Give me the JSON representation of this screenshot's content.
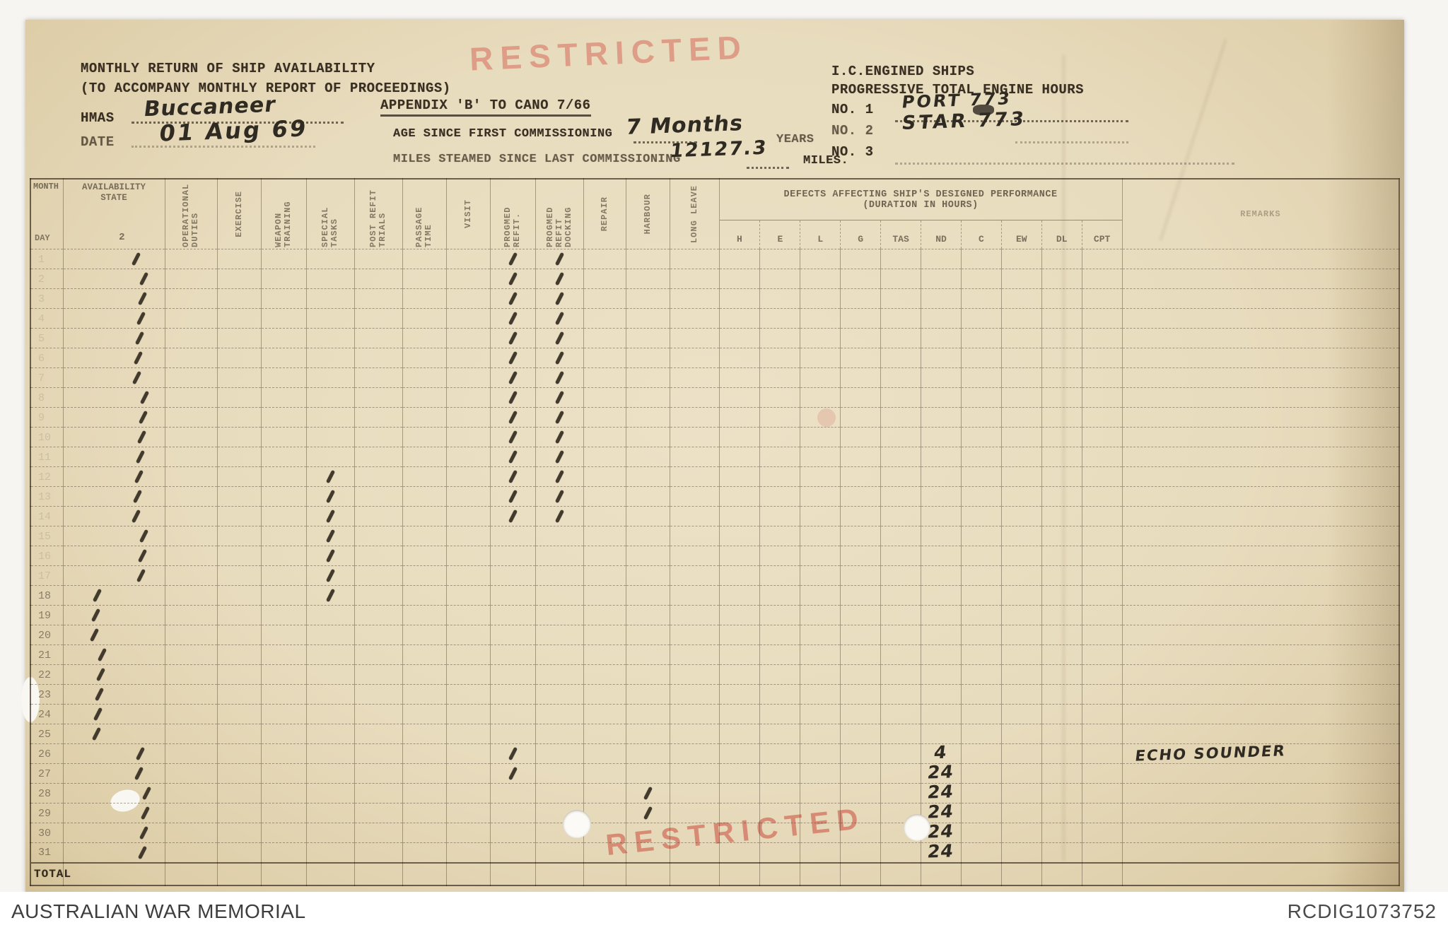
{
  "header": {
    "title_line1": "MONTHLY RETURN OF SHIP AVAILABILITY",
    "title_line2": "(TO ACCOMPANY MONTHLY REPORT OF PROCEEDINGS)",
    "hmas_label": "HMAS",
    "ship_name": "Buccaneer",
    "date_label": "DATE",
    "date_value": "01 Aug 69",
    "appendix": "APPENDIX 'B' TO CANO 7/66",
    "age_label": "AGE SINCE FIRST COMMISSIONING",
    "age_value": "7 Months",
    "age_unit": "YEARS",
    "miles_label": "MILES STEAMED SINCE LAST COMMISSIONING",
    "miles_value": "12127.3",
    "miles_unit": "MILES.",
    "engine_line1": "I.C.ENGINED SHIPS",
    "engine_line2": "PROGRESSIVE TOTAL ENGINE HOURS",
    "engine_no1_label": "NO. 1",
    "engine_no1_value": "PORT 773",
    "engine_no2_label": "NO. 2",
    "engine_no2_value": "STAR 773",
    "engine_no3_label": "NO. 3",
    "engine_no3_value": "",
    "stamp": "RESTRICTED"
  },
  "table": {
    "month_label": "MONTH",
    "day_label": "DAY",
    "availability_label": "AVAILABILITY STATE",
    "availability_state": "2",
    "rotated_columns": [
      {
        "id": "op",
        "label": "OPERATIONAL DUTIES"
      },
      {
        "id": "ex",
        "label": "EXERCISE"
      },
      {
        "id": "wt",
        "label": "WEAPON TRAINING"
      },
      {
        "id": "st",
        "label": "SPECIAL TASKS"
      },
      {
        "id": "prt",
        "label": "POST REFIT TRIALS"
      },
      {
        "id": "pt",
        "label": "PASSAGE TIME"
      },
      {
        "id": "v",
        "label": "VISIT"
      },
      {
        "id": "pr",
        "label": "PROGMED REFIT."
      },
      {
        "id": "prd",
        "label": "PROGMED REFIT DOCKING"
      },
      {
        "id": "rep",
        "label": "REPAIR"
      },
      {
        "id": "hb",
        "label": "HARBOUR"
      },
      {
        "id": "ll",
        "label": "LONG LEAVE"
      }
    ],
    "defects_header": "DEFECTS AFFECTING SHIP'S DESIGNED PERFORMANCE",
    "defects_subheader": "(DURATION IN HOURS)",
    "defect_columns": [
      "H",
      "E",
      "L",
      "G",
      "TAS",
      "ND",
      "C",
      "EW",
      "DL",
      "CPT"
    ],
    "remarks_label": "REMARKS",
    "total_label": "TOTAL",
    "rows": [
      {
        "day": "1",
        "ticks": [
          "av",
          "pr",
          "prd"
        ],
        "nd": "",
        "remark": ""
      },
      {
        "day": "2",
        "ticks": [
          "av",
          "pr",
          "prd"
        ],
        "nd": "",
        "remark": ""
      },
      {
        "day": "3",
        "ticks": [
          "av",
          "pr",
          "prd"
        ],
        "nd": "",
        "remark": ""
      },
      {
        "day": "4",
        "ticks": [
          "av",
          "pr",
          "prd"
        ],
        "nd": "",
        "remark": ""
      },
      {
        "day": "5",
        "ticks": [
          "av",
          "pr",
          "prd"
        ],
        "nd": "",
        "remark": ""
      },
      {
        "day": "6",
        "ticks": [
          "av",
          "pr",
          "prd"
        ],
        "nd": "",
        "remark": ""
      },
      {
        "day": "7",
        "ticks": [
          "av",
          "pr",
          "prd"
        ],
        "nd": "",
        "remark": ""
      },
      {
        "day": "8",
        "ticks": [
          "av",
          "pr",
          "prd"
        ],
        "nd": "",
        "remark": ""
      },
      {
        "day": "9",
        "ticks": [
          "av",
          "pr",
          "prd"
        ],
        "nd": "",
        "remark": ""
      },
      {
        "day": "10",
        "ticks": [
          "av",
          "pr",
          "prd"
        ],
        "nd": "",
        "remark": ""
      },
      {
        "day": "11",
        "ticks": [
          "av",
          "pr",
          "prd"
        ],
        "nd": "",
        "remark": ""
      },
      {
        "day": "12",
        "ticks": [
          "av",
          "st",
          "pr",
          "prd"
        ],
        "nd": "",
        "remark": ""
      },
      {
        "day": "13",
        "ticks": [
          "av",
          "st",
          "pr",
          "prd"
        ],
        "nd": "",
        "remark": ""
      },
      {
        "day": "14",
        "ticks": [
          "av",
          "st",
          "pr",
          "prd"
        ],
        "nd": "",
        "remark": ""
      },
      {
        "day": "15",
        "ticks": [
          "av",
          "st"
        ],
        "nd": "",
        "remark": ""
      },
      {
        "day": "16",
        "ticks": [
          "av",
          "st"
        ],
        "nd": "",
        "remark": ""
      },
      {
        "day": "17",
        "ticks": [
          "av",
          "st"
        ],
        "nd": "",
        "remark": ""
      },
      {
        "day": "18",
        "ticks": [
          "av",
          "st"
        ],
        "nd": "",
        "remark": ""
      },
      {
        "day": "19",
        "ticks": [
          "av"
        ],
        "nd": "",
        "remark": ""
      },
      {
        "day": "20",
        "ticks": [
          "av"
        ],
        "nd": "",
        "remark": ""
      },
      {
        "day": "21",
        "ticks": [
          "av"
        ],
        "nd": "",
        "remark": ""
      },
      {
        "day": "22",
        "ticks": [
          "av"
        ],
        "nd": "",
        "remark": ""
      },
      {
        "day": "23",
        "ticks": [
          "av"
        ],
        "nd": "",
        "remark": ""
      },
      {
        "day": "24",
        "ticks": [
          "av"
        ],
        "nd": "",
        "remark": ""
      },
      {
        "day": "25",
        "ticks": [
          "av"
        ],
        "nd": "",
        "remark": ""
      },
      {
        "day": "26",
        "ticks": [
          "av",
          "pr"
        ],
        "nd": "4",
        "remark": "ECHO SOUNDER"
      },
      {
        "day": "27",
        "ticks": [
          "av",
          "pr"
        ],
        "nd": "24",
        "remark": ""
      },
      {
        "day": "28",
        "ticks": [
          "av",
          "hb"
        ],
        "nd": "24",
        "remark": ""
      },
      {
        "day": "29",
        "ticks": [
          "av",
          "hb"
        ],
        "nd": "24",
        "remark": ""
      },
      {
        "day": "30",
        "ticks": [
          "av"
        ],
        "nd": "24",
        "remark": ""
      },
      {
        "day": "31",
        "ticks": [
          "av"
        ],
        "nd": "24",
        "remark": ""
      }
    ]
  },
  "footer": {
    "source": "AUSTRALIAN WAR MEMORIAL",
    "id": "RCDIG1073752"
  },
  "colors": {
    "stamp_red": "#cc5242",
    "paper": "#e9dec2",
    "ink": "#302618"
  }
}
